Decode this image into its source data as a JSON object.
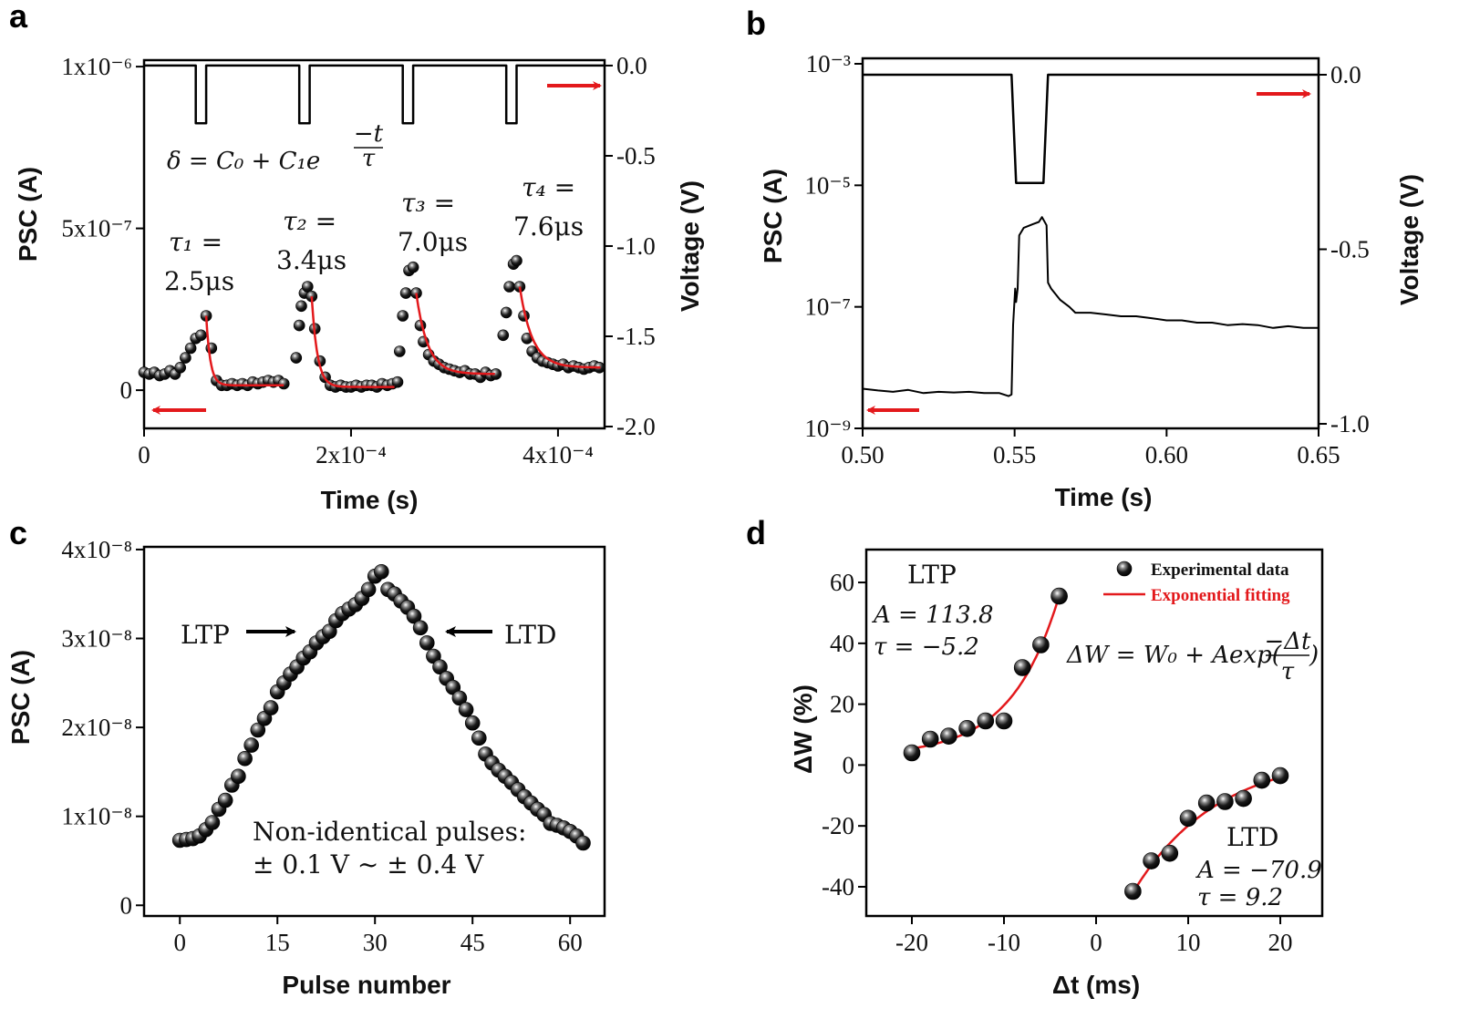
{
  "colors": {
    "data": "#000000",
    "fit": "#e3191c",
    "arrow_red": "#e3191c"
  },
  "chart_data": [
    {
      "panel_label": "a",
      "type": "scatter",
      "xlabel": "Time  (s)",
      "ylabel": "PSC (A)",
      "ylabel_right": "Voltage (V)",
      "xlim": [
        0,
        0.000445
      ],
      "ylim": [
        -1.18e-07,
        1.02e-06
      ],
      "ylim_right": [
        -2.01,
        0.03
      ],
      "x_ticks": [
        {
          "v": 0,
          "label": "0"
        },
        {
          "v": 0.0002,
          "label": "2x10⁻⁴"
        },
        {
          "v": 0.0004,
          "label": "4x10⁻⁴"
        }
      ],
      "y_ticks": [
        {
          "v": 0,
          "label": "0"
        },
        {
          "v": 5e-07,
          "label": "5x10⁻⁷"
        },
        {
          "v": 1e-06,
          "label": "1x10⁻⁶"
        }
      ],
      "y_right_ticks": [
        {
          "v": 0,
          "label": "0.0"
        },
        {
          "v": -0.5,
          "label": "-0.5"
        },
        {
          "v": -1.0,
          "label": "-1.0"
        },
        {
          "v": -1.5,
          "label": "-1.5"
        },
        {
          "v": -2.0,
          "label": "-2.0"
        }
      ],
      "voltage": {
        "x": [
          0,
          5e-05,
          5e-05,
          6e-05,
          6e-05,
          0.00015,
          0.00015,
          0.00016,
          0.00016,
          0.00025,
          0.00025,
          0.00026,
          0.00026,
          0.00035,
          0.00035,
          0.00036,
          0.00036,
          0.000445
        ],
        "y": [
          0,
          0,
          -0.32,
          -0.32,
          0,
          0,
          -0.32,
          -0.32,
          0,
          0,
          -0.32,
          -0.32,
          0,
          0,
          -0.32,
          -0.32,
          0,
          0
        ]
      },
      "psc_points": [
        [
          0,
          5.5e-08
        ],
        [
          5e-06,
          5e-08
        ],
        [
          1e-05,
          5.5e-08
        ],
        [
          1.5e-05,
          4.5e-08
        ],
        [
          2e-05,
          5e-08
        ],
        [
          2.5e-05,
          6e-08
        ],
        [
          3e-05,
          5e-08
        ],
        [
          3.5e-05,
          7e-08
        ],
        [
          4e-05,
          1e-07
        ],
        [
          4.5e-05,
          1.3e-07
        ],
        [
          5e-05,
          1.6e-07
        ],
        [
          5.5e-05,
          1.7e-07
        ],
        [
          6e-05,
          2.3e-07
        ],
        [
          6.5e-05,
          1.3e-07
        ],
        [
          7e-05,
          3e-08
        ],
        [
          7.5e-05,
          1.5e-08
        ],
        [
          8e-05,
          1.5e-08
        ],
        [
          8.5e-05,
          2e-08
        ],
        [
          9e-05,
          1.5e-08
        ],
        [
          9.5e-05,
          2e-08
        ],
        [
          0.0001,
          1.5e-08
        ],
        [
          0.000105,
          2.5e-08
        ],
        [
          0.00011,
          2e-08
        ],
        [
          0.000115,
          2.5e-08
        ],
        [
          0.00012,
          3e-08
        ],
        [
          0.000125,
          2.5e-08
        ],
        [
          0.00013,
          3e-08
        ],
        [
          0.000135,
          2e-08
        ],
        [
          0.000147,
          1e-07
        ],
        [
          0.00015,
          2e-07
        ],
        [
          0.000152,
          2.6e-07
        ],
        [
          0.000155,
          3e-07
        ],
        [
          0.000158,
          3.2e-07
        ],
        [
          0.000162,
          2.9e-07
        ],
        [
          0.000165,
          1.9e-07
        ],
        [
          0.00017,
          9e-08
        ],
        [
          0.000175,
          4e-08
        ],
        [
          0.00018,
          1.5e-08
        ],
        [
          0.000185,
          1e-08
        ],
        [
          0.00019,
          1.5e-08
        ],
        [
          0.000195,
          1e-08
        ],
        [
          0.0002,
          1e-08
        ],
        [
          0.000205,
          1.5e-08
        ],
        [
          0.00021,
          1e-08
        ],
        [
          0.000215,
          1.5e-08
        ],
        [
          0.00022,
          1.5e-08
        ],
        [
          0.000225,
          1e-08
        ],
        [
          0.00023,
          2e-08
        ],
        [
          0.000235,
          1.5e-08
        ],
        [
          0.00024,
          2e-08
        ],
        [
          0.000245,
          2.5e-08
        ],
        [
          0.000247,
          1.2e-07
        ],
        [
          0.00025,
          2.3e-07
        ],
        [
          0.000253,
          3e-07
        ],
        [
          0.000256,
          3.7e-07
        ],
        [
          0.00026,
          3.8e-07
        ],
        [
          0.000263,
          3e-07
        ],
        [
          0.000267,
          2e-07
        ],
        [
          0.00027,
          1.5e-07
        ],
        [
          0.000275,
          1.1e-07
        ],
        [
          0.00028,
          9e-08
        ],
        [
          0.000285,
          8e-08
        ],
        [
          0.00029,
          7e-08
        ],
        [
          0.000295,
          6.5e-08
        ],
        [
          0.0003,
          6e-08
        ],
        [
          0.000305,
          5.5e-08
        ],
        [
          0.00031,
          6e-08
        ],
        [
          0.000315,
          5e-08
        ],
        [
          0.00032,
          5e-08
        ],
        [
          0.000325,
          4e-08
        ],
        [
          0.00033,
          5.5e-08
        ],
        [
          0.000335,
          4.5e-08
        ],
        [
          0.00034,
          5e-08
        ],
        [
          0.000347,
          1.7e-07
        ],
        [
          0.00035,
          2.4e-07
        ],
        [
          0.000353,
          3.2e-07
        ],
        [
          0.000357,
          3.9e-07
        ],
        [
          0.00036,
          4e-07
        ],
        [
          0.000363,
          3.2e-07
        ],
        [
          0.000367,
          2.3e-07
        ],
        [
          0.00037,
          1.6e-07
        ],
        [
          0.000375,
          1.2e-07
        ],
        [
          0.00038,
          1e-07
        ],
        [
          0.000385,
          9e-08
        ],
        [
          0.00039,
          8.5e-08
        ],
        [
          0.000395,
          8e-08
        ],
        [
          0.0004,
          7.5e-08
        ],
        [
          0.000405,
          8e-08
        ],
        [
          0.00041,
          7e-08
        ],
        [
          0.000415,
          7.5e-08
        ],
        [
          0.00042,
          7e-08
        ],
        [
          0.000425,
          6.5e-08
        ],
        [
          0.00043,
          7e-08
        ],
        [
          0.000435,
          7.5e-08
        ],
        [
          0.00044,
          7e-08
        ]
      ],
      "equation": {
        "main": "δ = C₀ + C₁e",
        "exp_num": "−t",
        "exp_den": "τ"
      },
      "fits": [
        {
          "tau_label": "τ₁ =",
          "tau_value": "2.5μs",
          "tau_us": 2.5
        },
        {
          "tau_label": "τ₂ =",
          "tau_value": "3.4μs",
          "tau_us": 3.4
        },
        {
          "tau_label": "τ₃ =",
          "tau_value": "7.0μs",
          "tau_us": 7.0
        },
        {
          "tau_label": "τ₄ =",
          "tau_value": "7.6μs",
          "tau_us": 7.6
        }
      ]
    },
    {
      "panel_label": "b",
      "type": "line",
      "xlabel": "Time (s)",
      "ylabel": "PSC (A)",
      "ylabel_right": "Voltage (V)",
      "yscale": "log",
      "xlim": [
        0.5,
        0.65
      ],
      "ylim": [
        1e-09,
        0.00123
      ],
      "ylim_right": [
        -1.013,
        0.047
      ],
      "x_ticks": [
        {
          "v": 0.5,
          "label": "0.50"
        },
        {
          "v": 0.55,
          "label": "0.55"
        },
        {
          "v": 0.6,
          "label": "0.60"
        },
        {
          "v": 0.65,
          "label": "0.65"
        }
      ],
      "y_ticks": [
        {
          "v": 0.001,
          "label": "10⁻³"
        },
        {
          "v": 1e-05,
          "label": "10⁻⁵"
        },
        {
          "v": 1e-07,
          "label": "10⁻⁷"
        },
        {
          "v": 1e-09,
          "label": "10⁻⁹"
        }
      ],
      "y_right_ticks": [
        {
          "v": 0,
          "label": "0.0"
        },
        {
          "v": -0.5,
          "label": "-0.5"
        },
        {
          "v": -1.0,
          "label": "-1.0"
        }
      ],
      "voltage": {
        "x": [
          0.5,
          0.549,
          0.5505,
          0.5595,
          0.561,
          0.65
        ],
        "y": [
          0,
          0,
          -0.31,
          -0.31,
          0,
          0
        ]
      },
      "psc": {
        "x": [
          0.5,
          0.505,
          0.51,
          0.515,
          0.52,
          0.525,
          0.53,
          0.535,
          0.54,
          0.545,
          0.548,
          0.549,
          0.5495,
          0.5502,
          0.5505,
          0.551,
          0.5515,
          0.553,
          0.556,
          0.558,
          0.559,
          0.5605,
          0.561,
          0.562,
          0.565,
          0.568,
          0.57,
          0.575,
          0.58,
          0.585,
          0.59,
          0.595,
          0.6,
          0.605,
          0.61,
          0.615,
          0.62,
          0.625,
          0.63,
          0.635,
          0.64,
          0.645,
          0.65
        ],
        "y": [
          4.5e-09,
          4.2e-09,
          4e-09,
          4.3e-09,
          3.8e-09,
          4e-09,
          3.9e-09,
          4e-09,
          3.8e-09,
          3.8e-09,
          3.4e-09,
          3.6e-09,
          5e-08,
          2e-07,
          1.2e-07,
          2e-07,
          1.5e-06,
          2e-06,
          2.3e-06,
          2.5e-06,
          3e-06,
          2.2e-06,
          2.5e-07,
          2e-07,
          1.3e-07,
          1e-07,
          8e-08,
          8e-08,
          7.5e-08,
          7e-08,
          7e-08,
          6.5e-08,
          6e-08,
          6e-08,
          5.5e-08,
          5.5e-08,
          5e-08,
          5.2e-08,
          5e-08,
          4.5e-08,
          4.8e-08,
          4.5e-08,
          4.5e-08
        ]
      }
    },
    {
      "panel_label": "c",
      "type": "scatter",
      "xlabel": "Pulse number",
      "ylabel": "PSC (A)",
      "xlim": [
        -5.5,
        65.3
      ],
      "ylim": [
        -1.2e-09,
        4.03e-08
      ],
      "x_ticks": [
        {
          "v": 0,
          "label": "0"
        },
        {
          "v": 15,
          "label": "15"
        },
        {
          "v": 30,
          "label": "30"
        },
        {
          "v": 45,
          "label": "45"
        },
        {
          "v": 60,
          "label": "60"
        }
      ],
      "y_ticks": [
        {
          "v": 0,
          "label": "0"
        },
        {
          "v": 1e-08,
          "label": "1x10⁻⁸"
        },
        {
          "v": 2e-08,
          "label": "2x10⁻⁸"
        },
        {
          "v": 3e-08,
          "label": "3x10⁻⁸"
        },
        {
          "v": 4e-08,
          "label": "4x10⁻⁸"
        }
      ],
      "y_values_e-8": [
        0.73,
        0.74,
        0.75,
        0.78,
        0.85,
        0.93,
        1.08,
        1.18,
        1.35,
        1.45,
        1.65,
        1.8,
        1.97,
        2.1,
        2.22,
        2.4,
        2.5,
        2.6,
        2.68,
        2.78,
        2.85,
        2.95,
        3.02,
        3.08,
        3.2,
        3.28,
        3.33,
        3.38,
        3.45,
        3.55,
        3.7,
        3.75,
        3.55,
        3.5,
        3.42,
        3.35,
        3.25,
        3.12,
        2.95,
        2.8,
        2.68,
        2.55,
        2.45,
        2.33,
        2.2,
        2.05,
        1.88,
        1.7,
        1.6,
        1.52,
        1.45,
        1.38,
        1.3,
        1.22,
        1.15,
        1.08,
        1.02,
        0.92,
        0.9,
        0.87,
        0.83,
        0.78,
        0.7
      ],
      "annotations": {
        "ltp": "LTP",
        "ltd": "LTD",
        "note_line1": "Non-identical pulses:",
        "note_line2": "± 0.1 V ~ ± 0.4 V"
      }
    },
    {
      "panel_label": "d",
      "type": "scatter",
      "xlabel": "Δt (ms)",
      "ylabel": "ΔW (%)",
      "xlim": [
        -24.95,
        24.55
      ],
      "ylim": [
        -49.6,
        70.8
      ],
      "x_ticks": [
        {
          "v": -20,
          "label": "-20"
        },
        {
          "v": -10,
          "label": "-10"
        },
        {
          "v": 0,
          "label": "0"
        },
        {
          "v": 10,
          "label": "10"
        },
        {
          "v": 20,
          "label": "20"
        }
      ],
      "y_ticks": [
        {
          "v": -40,
          "label": "-40"
        },
        {
          "v": -20,
          "label": "-20"
        },
        {
          "v": 0,
          "label": "0"
        },
        {
          "v": 20,
          "label": "20"
        },
        {
          "v": 40,
          "label": "40"
        },
        {
          "v": 60,
          "label": "60"
        }
      ],
      "legend": {
        "position": "top-right",
        "data_label": "Experimental data",
        "fit_label": "Exponential fitting"
      },
      "ltp": {
        "label": "LTP",
        "A_text": "A = 113.8",
        "tau_text": "τ = −5.2",
        "A": 113.8,
        "tau": -5.2,
        "x": [
          -20,
          -18,
          -16,
          -14,
          -12,
          -10,
          -8,
          -6,
          -4
        ],
        "y": [
          4,
          8.5,
          9.5,
          12,
          14.5,
          14.5,
          32,
          39.5,
          55.5
        ]
      },
      "ltd": {
        "label": "LTD",
        "A_text": "A = −70.9",
        "tau_text": "τ = 9.2",
        "A": -70.9,
        "tau": 9.2,
        "x": [
          4,
          6,
          8,
          10,
          12,
          14,
          16,
          18,
          20
        ],
        "y": [
          -41.5,
          -31.5,
          -29,
          -17.5,
          -12.5,
          -12,
          -11,
          -5,
          -3.5
        ]
      },
      "equation": {
        "main": "ΔW = W₀ + Aexp(",
        "frac_num": "−Δt",
        "frac_den": "τ",
        "close": ")"
      }
    }
  ]
}
